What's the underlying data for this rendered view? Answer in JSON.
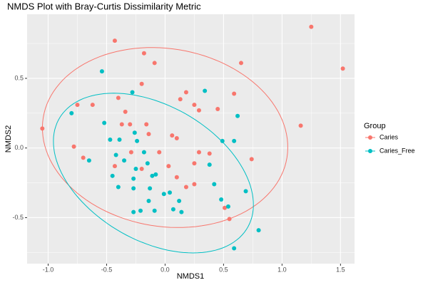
{
  "chart_data": {
    "type": "scatter",
    "title": "NMDS Plot with Bray-Curtis Dissimilarity Metric",
    "x_label": "NMDS1",
    "y_label": "NMDS2",
    "legend_title": "Group",
    "legend": "right",
    "grid": true,
    "xlim": [
      -1.18,
      1.62
    ],
    "ylim": [
      -0.83,
      0.96
    ],
    "xticks": [
      {
        "value": -1.0,
        "label": "-1.0"
      },
      -0.5,
      {
        "value": 0,
        "label": "0.0"
      },
      0.5,
      {
        "value": 1.0,
        "label": "1.0"
      },
      1.5
    ],
    "yticks": [
      -0.5,
      {
        "value": 0,
        "label": "0.0"
      },
      0.5
    ],
    "series": [
      {
        "name": "Caries",
        "color": "#F8766D",
        "x": [
          -0.43,
          1.25,
          1.52,
          -0.18,
          -0.09,
          0.65,
          -0.2,
          0.18,
          0.13,
          -0.4,
          -0.75,
          -0.62,
          -0.34,
          0.25,
          0.29,
          0.45,
          0.59,
          -1.05,
          1.16,
          -0.16,
          -0.37,
          -0.3,
          -0.14,
          0.06,
          0.1,
          -0.78,
          -0.7,
          -0.29,
          -0.05,
          0.38,
          0.29,
          0.74,
          -0.43,
          -0.2,
          0.03,
          0.1,
          0.18,
          0.25,
          0.25,
          0.55,
          0.51
        ],
        "y": [
          0.77,
          0.87,
          0.57,
          0.68,
          0.61,
          0.61,
          0.46,
          0.4,
          0.35,
          0.36,
          0.31,
          0.31,
          0.26,
          0.31,
          0.27,
          0.28,
          0.39,
          0.14,
          0.16,
          0.17,
          0.17,
          0.17,
          0.1,
          0.09,
          0.07,
          0.01,
          -0.07,
          -0.03,
          -0.03,
          -0.04,
          -0.03,
          -0.08,
          -0.13,
          -0.15,
          -0.13,
          -0.21,
          -0.28,
          -0.26,
          -0.11,
          -0.51,
          -0.43
        ],
        "ellipse": {
          "cx": 0,
          "cy": 0.075,
          "a": 1.053,
          "b": 0.64,
          "angle": -6
        }
      },
      {
        "name": "Caries_Free",
        "color": "#00BFC4",
        "x": [
          -0.54,
          0.34,
          -0.28,
          0.62,
          -0.52,
          -0.26,
          -0.47,
          -0.39,
          -0.24,
          0.49,
          0.59,
          -0.8,
          -0.65,
          -0.42,
          -0.18,
          -0.35,
          -0.25,
          -0.45,
          -0.15,
          -0.08,
          -0.11,
          0.38,
          -0.27,
          -0.4,
          -0.27,
          -0.13,
          -0.01,
          0.04,
          0.42,
          0.69,
          0.48,
          0.12,
          -0.14,
          -0.21,
          -0.27,
          -0.09,
          0.07,
          0.14,
          0.54,
          0.8,
          0.59
        ],
        "y": [
          0.55,
          0.41,
          0.4,
          0.23,
          0.18,
          0.11,
          0.06,
          0.06,
          0.05,
          0.05,
          0.05,
          0.25,
          -0.09,
          -0.05,
          -0.03,
          -0.09,
          -0.15,
          -0.2,
          -0.11,
          -0.19,
          -0.2,
          -0.12,
          -0.22,
          -0.28,
          -0.29,
          -0.29,
          -0.33,
          -0.32,
          -0.26,
          -0.31,
          -0.37,
          -0.38,
          -0.38,
          -0.45,
          -0.46,
          -0.45,
          -0.44,
          -0.46,
          -0.42,
          -0.59,
          -0.72
        ],
        "ellipse": {
          "cx": -0.1,
          "cy": -0.18,
          "a": 0.9,
          "b": 0.5,
          "angle": -22
        }
      }
    ]
  }
}
